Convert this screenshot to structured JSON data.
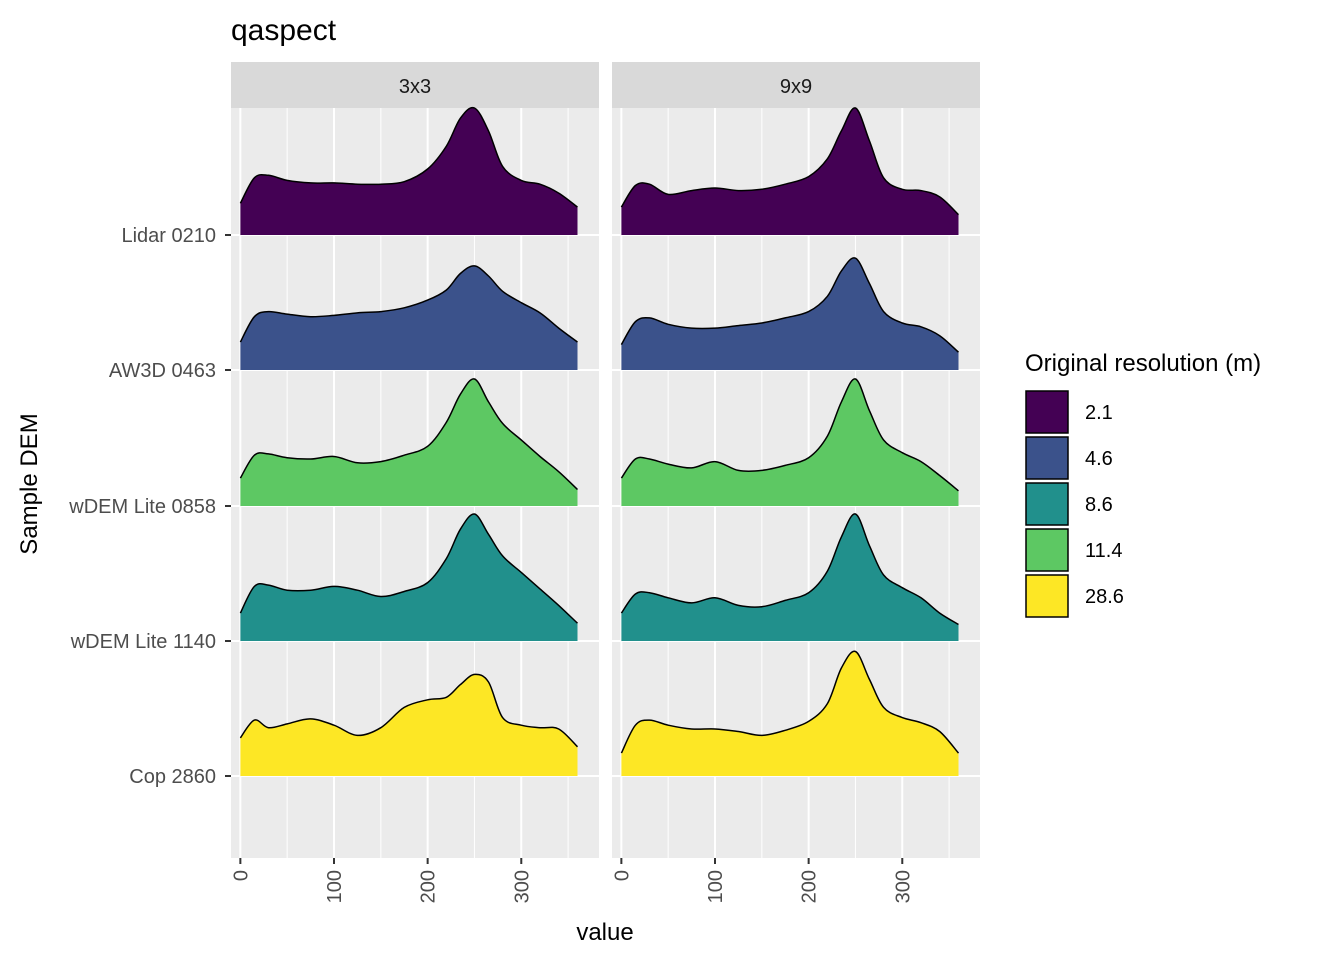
{
  "chart_data": {
    "type": "area",
    "subtype": "ridgeline density",
    "title": "qaspect",
    "xlabel": "value",
    "ylabel": "Sample DEM",
    "xlim": [
      -10,
      383
    ],
    "x_ticks": [
      0,
      100,
      200,
      300
    ],
    "x_tick_labels": [
      "0",
      "100",
      "200",
      "300"
    ],
    "facets": [
      "3x3",
      "9x9"
    ],
    "categories": [
      "Lidar 0210",
      "AW3D 0463",
      "wDEM Lite 0858",
      "wDEM Lite 1140",
      "Cop 2860"
    ],
    "grid": true,
    "legend": {
      "title": "Original resolution (m)",
      "position": "right",
      "entries": [
        {
          "label": "2.1",
          "color": "#440154"
        },
        {
          "label": "4.6",
          "color": "#3B528B"
        },
        {
          "label": "8.6",
          "color": "#21908C"
        },
        {
          "label": "11.4",
          "color": "#5DC863"
        },
        {
          "label": "28.6",
          "color": "#FDE725"
        }
      ]
    },
    "x": [
      0,
      15,
      30,
      50,
      75,
      100,
      125,
      150,
      175,
      200,
      220,
      235,
      250,
      265,
      280,
      300,
      320,
      340,
      360
    ],
    "series": [
      {
        "facet": "3x3",
        "category": "Lidar 0210",
        "color": "#440154",
        "values": [
          0.25,
          0.45,
          0.47,
          0.43,
          0.41,
          0.41,
          0.4,
          0.4,
          0.42,
          0.52,
          0.7,
          0.92,
          1.0,
          0.82,
          0.54,
          0.43,
          0.4,
          0.33,
          0.22
        ]
      },
      {
        "facet": "3x3",
        "category": "AW3D 0463",
        "color": "#3B528B",
        "values": [
          0.22,
          0.42,
          0.46,
          0.44,
          0.42,
          0.43,
          0.45,
          0.46,
          0.49,
          0.55,
          0.63,
          0.76,
          0.82,
          0.74,
          0.62,
          0.53,
          0.45,
          0.33,
          0.22
        ]
      },
      {
        "facet": "3x3",
        "category": "wDEM Lite 0858",
        "color": "#5DC863",
        "values": [
          0.22,
          0.4,
          0.41,
          0.38,
          0.37,
          0.39,
          0.34,
          0.35,
          0.4,
          0.47,
          0.66,
          0.88,
          1.0,
          0.82,
          0.65,
          0.52,
          0.39,
          0.27,
          0.13
        ]
      },
      {
        "facet": "3x3",
        "category": "wDEM Lite 1140",
        "color": "#21908C",
        "values": [
          0.22,
          0.43,
          0.44,
          0.4,
          0.4,
          0.43,
          0.4,
          0.35,
          0.39,
          0.46,
          0.65,
          0.88,
          1.0,
          0.84,
          0.67,
          0.54,
          0.41,
          0.28,
          0.14
        ]
      },
      {
        "facet": "3x3",
        "category": "Cop 2860",
        "color": "#FDE725",
        "values": [
          0.3,
          0.44,
          0.38,
          0.41,
          0.45,
          0.4,
          0.32,
          0.38,
          0.54,
          0.6,
          0.62,
          0.72,
          0.8,
          0.74,
          0.46,
          0.4,
          0.38,
          0.37,
          0.23
        ]
      },
      {
        "facet": "9x9",
        "category": "Lidar 0210",
        "color": "#440154",
        "values": [
          0.22,
          0.39,
          0.4,
          0.32,
          0.35,
          0.37,
          0.35,
          0.36,
          0.4,
          0.46,
          0.6,
          0.82,
          1.0,
          0.74,
          0.45,
          0.36,
          0.35,
          0.3,
          0.16
        ]
      },
      {
        "facet": "9x9",
        "category": "AW3D 0463",
        "color": "#3B528B",
        "values": [
          0.2,
          0.38,
          0.41,
          0.36,
          0.33,
          0.33,
          0.35,
          0.37,
          0.41,
          0.46,
          0.58,
          0.78,
          0.88,
          0.68,
          0.46,
          0.37,
          0.34,
          0.27,
          0.14
        ]
      },
      {
        "facet": "9x9",
        "category": "wDEM Lite 0858",
        "color": "#5DC863",
        "values": [
          0.22,
          0.37,
          0.37,
          0.33,
          0.3,
          0.35,
          0.28,
          0.28,
          0.32,
          0.38,
          0.55,
          0.82,
          1.0,
          0.75,
          0.52,
          0.42,
          0.35,
          0.24,
          0.12
        ]
      },
      {
        "facet": "9x9",
        "category": "wDEM Lite 1140",
        "color": "#21908C",
        "values": [
          0.22,
          0.37,
          0.38,
          0.34,
          0.3,
          0.34,
          0.28,
          0.27,
          0.32,
          0.38,
          0.55,
          0.82,
          1.0,
          0.75,
          0.52,
          0.42,
          0.34,
          0.22,
          0.13
        ]
      },
      {
        "facet": "9x9",
        "category": "Cop 2860",
        "color": "#FDE725",
        "values": [
          0.18,
          0.4,
          0.44,
          0.4,
          0.37,
          0.37,
          0.35,
          0.32,
          0.36,
          0.43,
          0.57,
          0.85,
          0.98,
          0.76,
          0.54,
          0.46,
          0.42,
          0.35,
          0.18
        ]
      }
    ]
  }
}
